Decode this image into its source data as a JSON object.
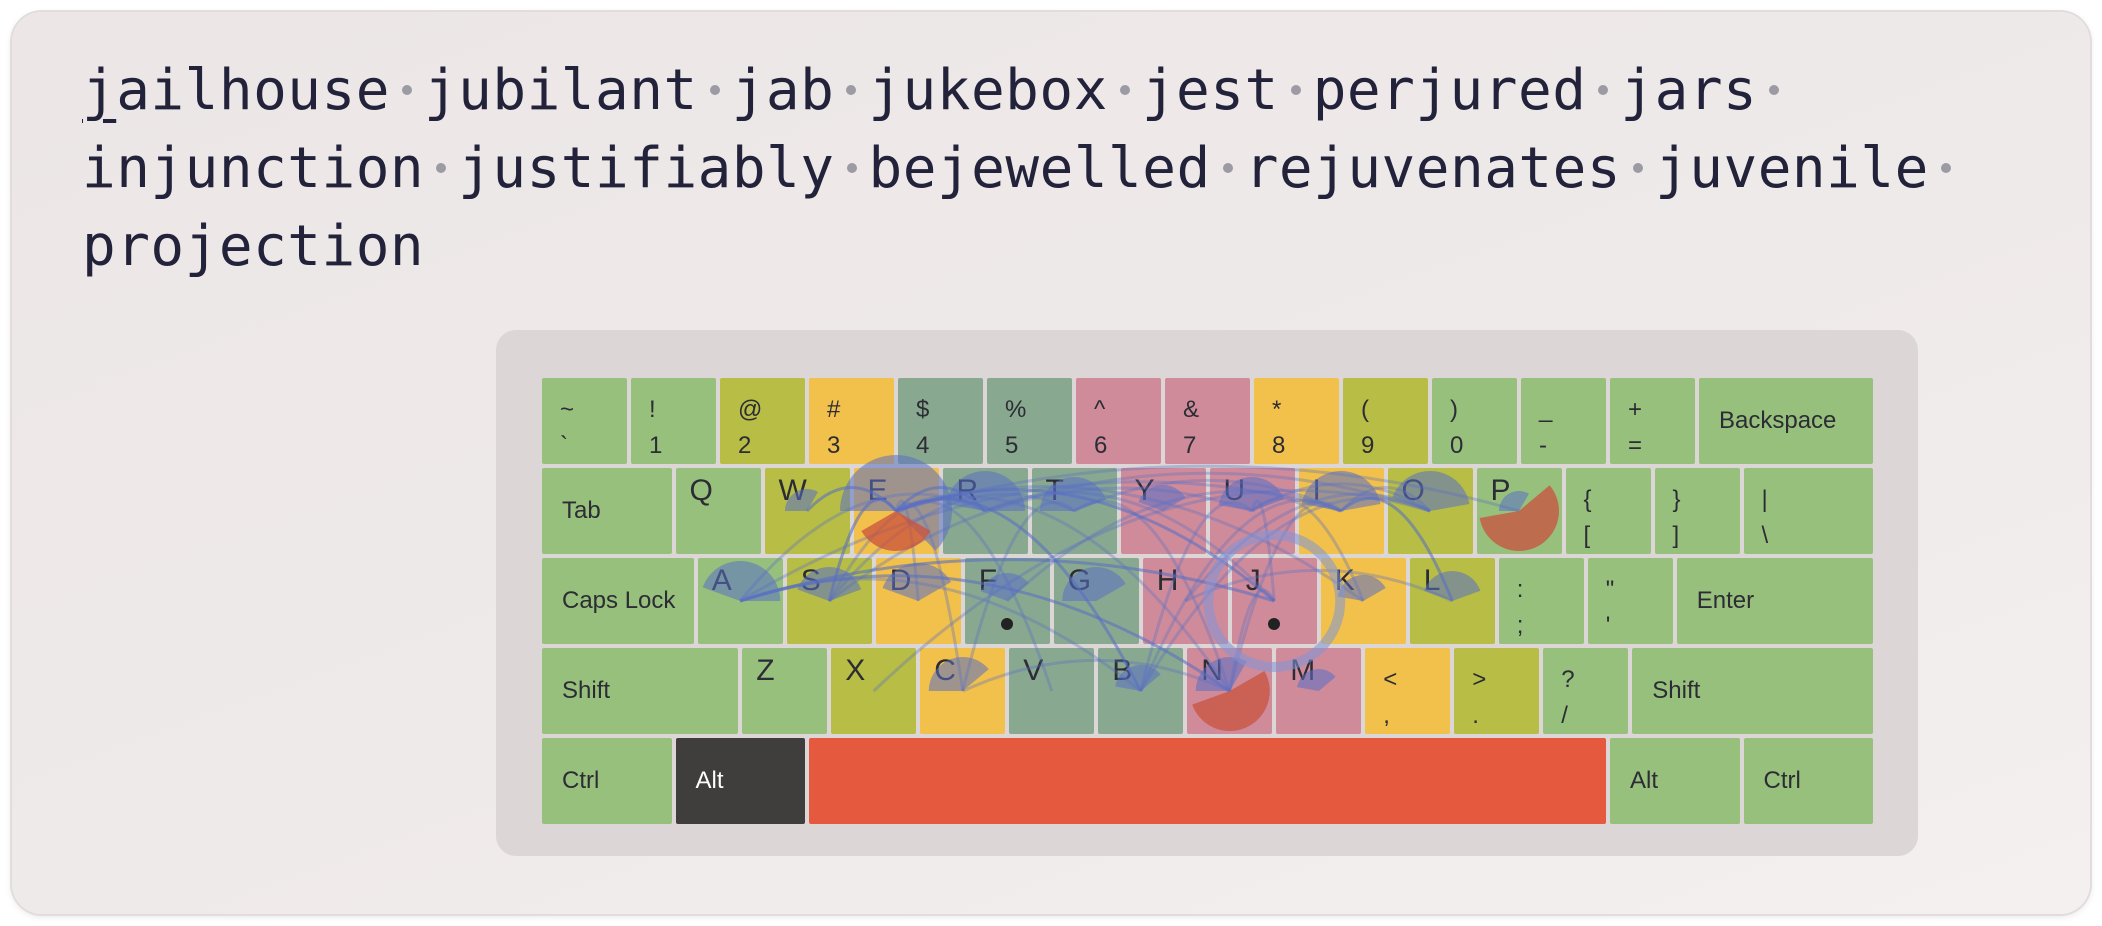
{
  "typing": {
    "words": [
      "jailhouse",
      "jubilant",
      "jab",
      "jukebox",
      "jest",
      "perjured",
      "jars",
      "injunction",
      "justifiably",
      "bejewelled",
      "rejuvenates",
      "juvenile",
      "projection"
    ],
    "cursor_index": 0
  },
  "colors": {
    "green": "#98c07d",
    "olive": "#b7bd45",
    "orange": "#f2c14b",
    "teal": "#89a890",
    "pink": "#cf8b9a",
    "dark": "#3f3e3d",
    "space": "#e5593e",
    "overlay_blue": "#5a70c4",
    "overlay_red": "#c9523e"
  },
  "keyboard": {
    "rows": [
      [
        {
          "id": "backtick",
          "top": "~",
          "bottom": "`",
          "color": "green"
        },
        {
          "id": "1",
          "top": "!",
          "bottom": "1",
          "color": "green"
        },
        {
          "id": "2",
          "top": "@",
          "bottom": "2",
          "color": "olive"
        },
        {
          "id": "3",
          "top": "#",
          "bottom": "3",
          "color": "orange"
        },
        {
          "id": "4",
          "top": "$",
          "bottom": "4",
          "color": "teal"
        },
        {
          "id": "5",
          "top": "%",
          "bottom": "5",
          "color": "teal"
        },
        {
          "id": "6",
          "top": "^",
          "bottom": "6",
          "color": "pink"
        },
        {
          "id": "7",
          "top": "&",
          "bottom": "7",
          "color": "pink"
        },
        {
          "id": "8",
          "top": "*",
          "bottom": "8",
          "color": "orange"
        },
        {
          "id": "9",
          "top": "(",
          "bottom": "9",
          "color": "olive"
        },
        {
          "id": "0",
          "top": ")",
          "bottom": "0",
          "color": "green"
        },
        {
          "id": "minus",
          "top": "_",
          "bottom": "-",
          "color": "green"
        },
        {
          "id": "equals",
          "top": "+",
          "bottom": "=",
          "color": "green"
        },
        {
          "id": "backspace",
          "label": "Backspace",
          "color": "green"
        }
      ],
      [
        {
          "id": "tab",
          "label": "Tab",
          "color": "green"
        },
        {
          "id": "q",
          "letter": "Q",
          "color": "green"
        },
        {
          "id": "w",
          "letter": "W",
          "color": "olive"
        },
        {
          "id": "e",
          "letter": "E",
          "color": "orange"
        },
        {
          "id": "r",
          "letter": "R",
          "color": "teal"
        },
        {
          "id": "t",
          "letter": "T",
          "color": "teal"
        },
        {
          "id": "y",
          "letter": "Y",
          "color": "pink"
        },
        {
          "id": "u",
          "letter": "U",
          "color": "pink"
        },
        {
          "id": "i",
          "letter": "I",
          "color": "orange"
        },
        {
          "id": "o",
          "letter": "O",
          "color": "olive"
        },
        {
          "id": "p",
          "letter": "P",
          "color": "green"
        },
        {
          "id": "lbracket",
          "top": "{",
          "bottom": "[",
          "color": "green"
        },
        {
          "id": "rbracket",
          "top": "}",
          "bottom": "]",
          "color": "green"
        },
        {
          "id": "backslash",
          "top": "|",
          "bottom": "\\",
          "color": "green"
        }
      ],
      [
        {
          "id": "caps",
          "label": "Caps Lock",
          "color": "green"
        },
        {
          "id": "a",
          "letter": "A",
          "color": "green"
        },
        {
          "id": "s",
          "letter": "S",
          "color": "olive"
        },
        {
          "id": "d",
          "letter": "D",
          "color": "orange"
        },
        {
          "id": "f",
          "letter": "F",
          "color": "teal",
          "bump": true
        },
        {
          "id": "g",
          "letter": "G",
          "color": "teal"
        },
        {
          "id": "h",
          "letter": "H",
          "color": "pink"
        },
        {
          "id": "j",
          "letter": "J",
          "color": "pink",
          "bump": true
        },
        {
          "id": "k",
          "letter": "K",
          "color": "orange"
        },
        {
          "id": "l",
          "letter": "L",
          "color": "olive"
        },
        {
          "id": "semicolon",
          "top": ":",
          "bottom": ";",
          "color": "green"
        },
        {
          "id": "quote",
          "top": "\"",
          "bottom": "'",
          "color": "green"
        },
        {
          "id": "enter",
          "label": "Enter",
          "color": "green"
        }
      ],
      [
        {
          "id": "lshift",
          "label": "Shift",
          "color": "green"
        },
        {
          "id": "z",
          "letter": "Z",
          "color": "green"
        },
        {
          "id": "x",
          "letter": "X",
          "color": "olive"
        },
        {
          "id": "c",
          "letter": "C",
          "color": "orange"
        },
        {
          "id": "v",
          "letter": "V",
          "color": "teal"
        },
        {
          "id": "b",
          "letter": "B",
          "color": "teal"
        },
        {
          "id": "n",
          "letter": "N",
          "color": "pink"
        },
        {
          "id": "m",
          "letter": "M",
          "color": "pink"
        },
        {
          "id": "comma",
          "top": "<",
          "bottom": ",",
          "color": "orange"
        },
        {
          "id": "period",
          "top": ">",
          "bottom": ".",
          "color": "olive"
        },
        {
          "id": "slash",
          "top": "?",
          "bottom": "/",
          "color": "green"
        },
        {
          "id": "rshift",
          "label": "Shift",
          "color": "green"
        }
      ],
      [
        {
          "id": "lctrl",
          "label": "Ctrl",
          "color": "green"
        },
        {
          "id": "lalt",
          "label": "Alt",
          "color": "dark"
        },
        {
          "id": "space",
          "label": "",
          "color": "space"
        },
        {
          "id": "ralt",
          "label": "Alt",
          "color": "green"
        },
        {
          "id": "rctrl",
          "label": "Ctrl",
          "color": "green"
        }
      ]
    ]
  }
}
